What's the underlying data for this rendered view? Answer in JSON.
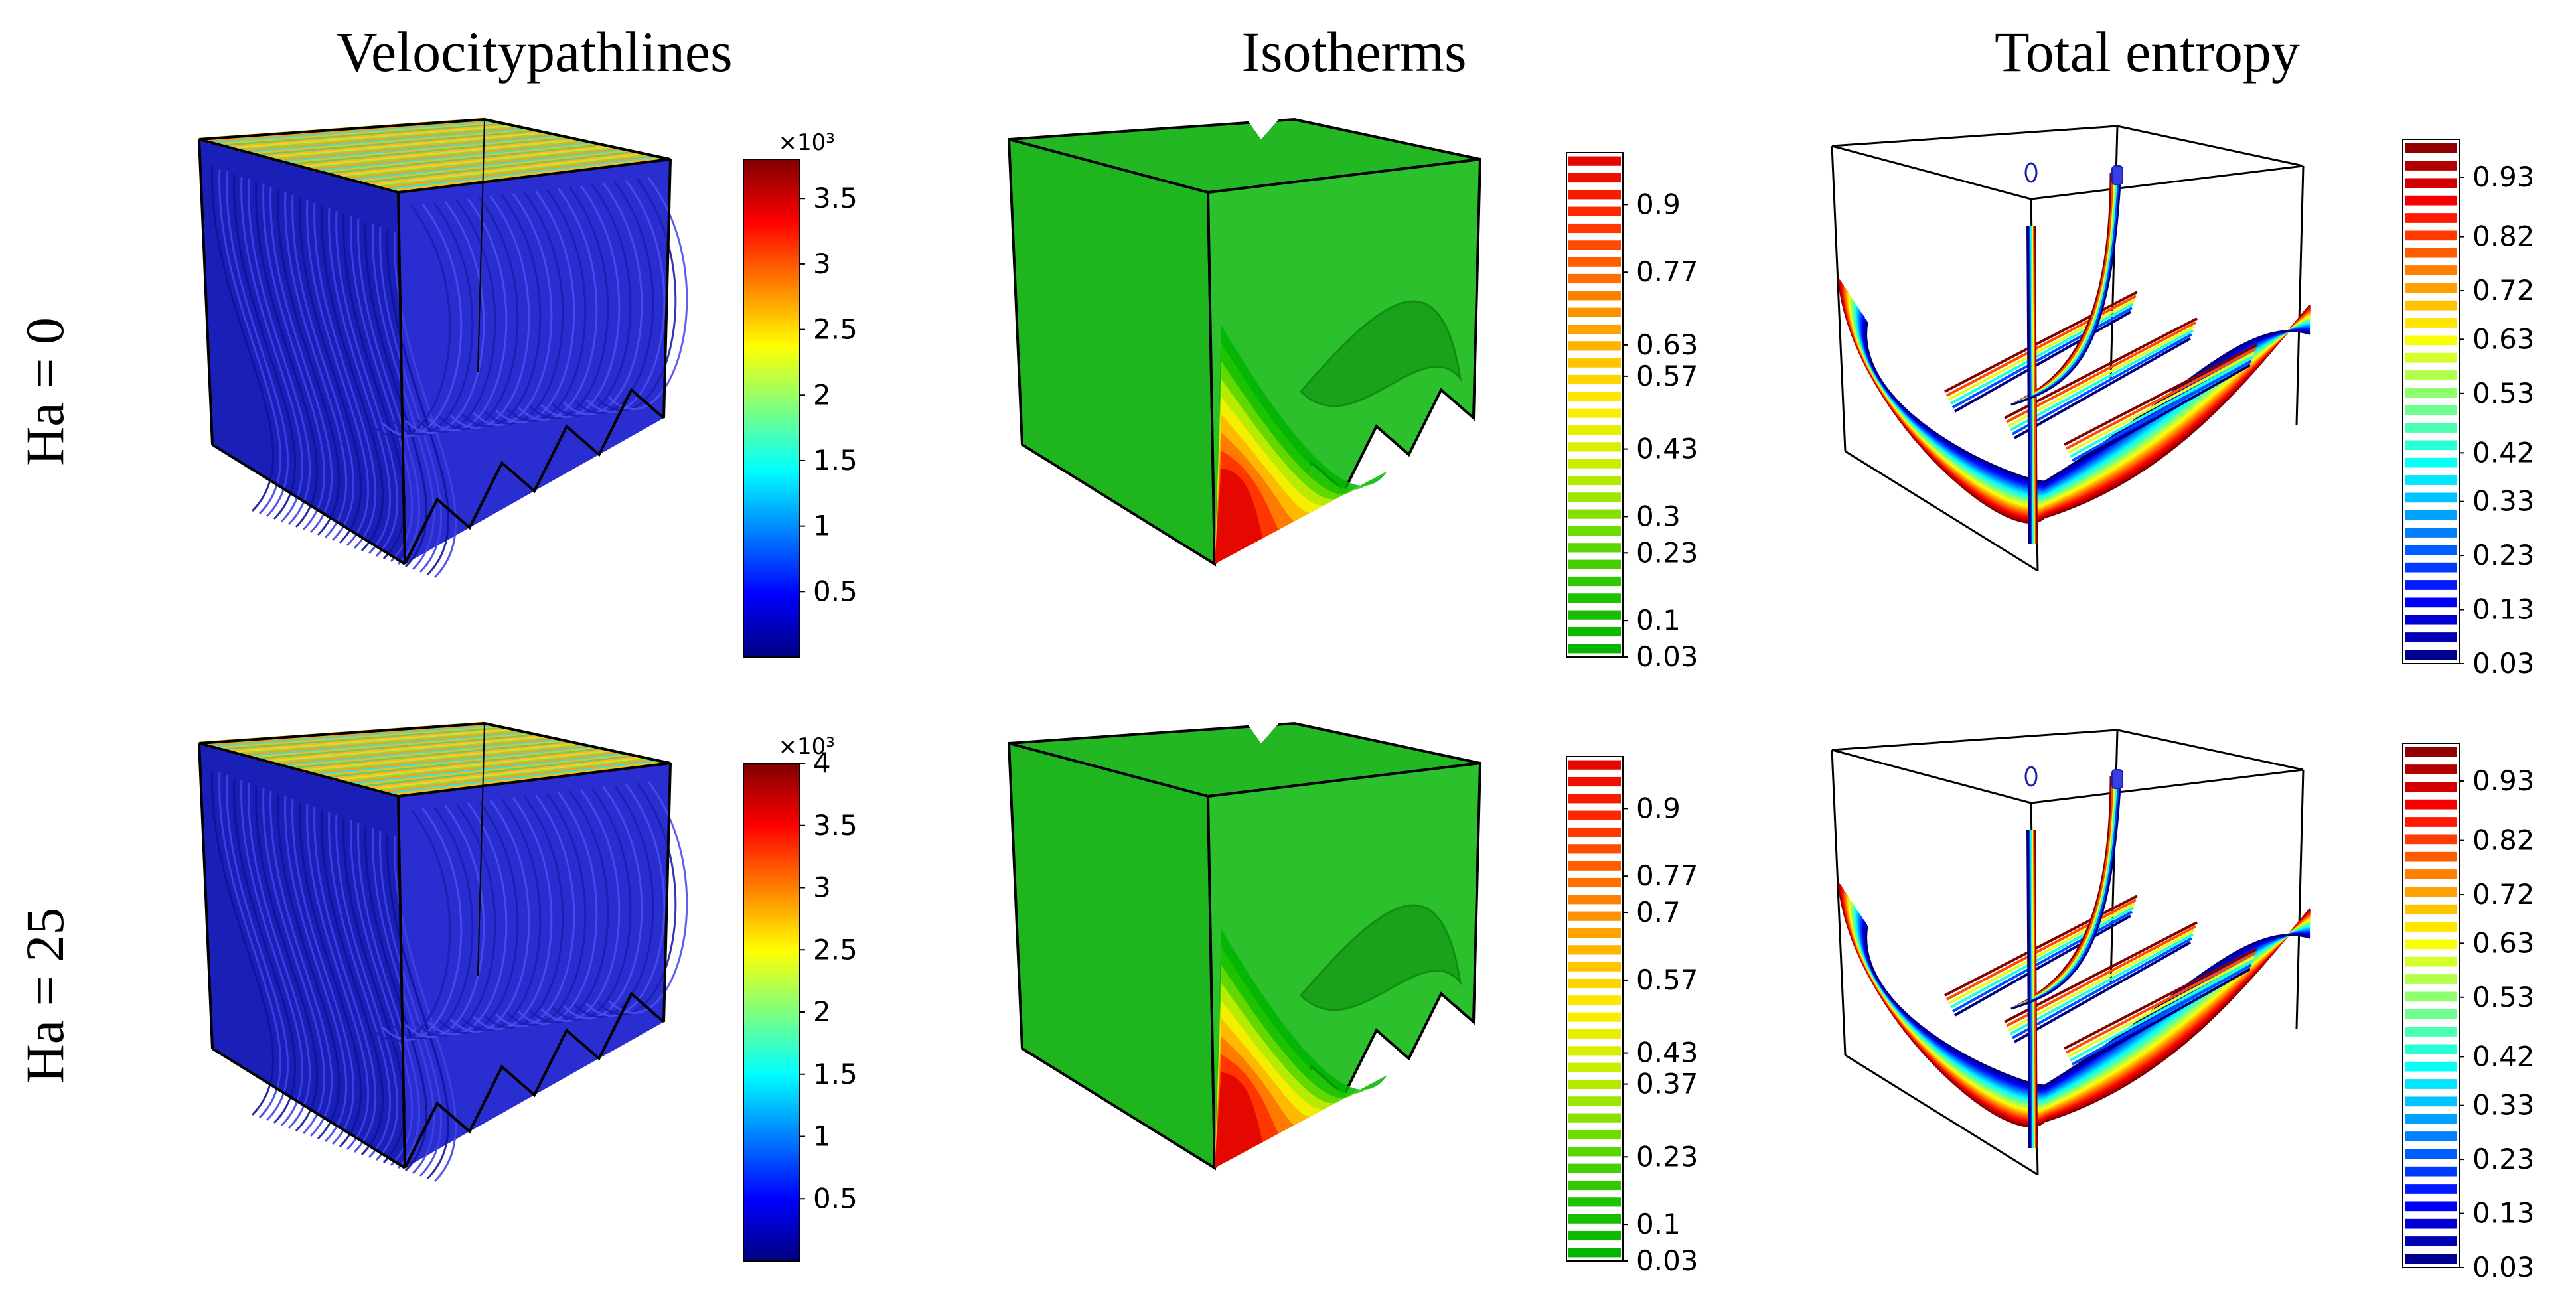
{
  "figure": {
    "columns": [
      {
        "title": "Velocitypathlines"
      },
      {
        "title": "Isotherms"
      },
      {
        "title": "Total entropy"
      }
    ],
    "rows": [
      {
        "label": "Ha = 0"
      },
      {
        "label": "Ha = 25"
      }
    ]
  },
  "panels": {
    "velocity_ha0": {
      "scale_label": "×10³",
      "ticks": [
        "3.5",
        "3",
        "2.5",
        "2",
        "1.5",
        "1",
        "0.5"
      ],
      "tick_values": [
        3.5,
        3,
        2.5,
        2,
        1.5,
        1,
        0.5
      ],
      "range": [
        0,
        3.8
      ]
    },
    "velocity_ha25": {
      "scale_label": "×10³",
      "ticks": [
        "4",
        "3.5",
        "3",
        "2.5",
        "2",
        "1.5",
        "1",
        "0.5"
      ],
      "tick_values": [
        4,
        3.5,
        3,
        2.5,
        2,
        1.5,
        1,
        0.5
      ],
      "range": [
        0,
        4
      ]
    },
    "isotherm_ha0": {
      "ticks": [
        "0.9",
        "0.77",
        "0.63",
        "0.57",
        "0.43",
        "0.3",
        "0.23",
        "0.1",
        "0.03"
      ],
      "tick_values": [
        0.9,
        0.77,
        0.63,
        0.57,
        0.43,
        0.3,
        0.23,
        0.1,
        0.03
      ],
      "range": [
        0.03,
        1
      ]
    },
    "isotherm_ha25": {
      "ticks": [
        "0.9",
        "0.77",
        "0.7",
        "0.57",
        "0.43",
        "0.37",
        "0.23",
        "0.1",
        "0.03"
      ],
      "tick_values": [
        0.9,
        0.77,
        0.7,
        0.57,
        0.43,
        0.37,
        0.23,
        0.1,
        0.03
      ],
      "range": [
        0.03,
        1
      ]
    },
    "entropy_ha0": {
      "ticks": [
        "0.93",
        "0.82",
        "0.72",
        "0.63",
        "0.53",
        "0.42",
        "0.33",
        "0.23",
        "0.13",
        "0.03"
      ],
      "tick_values": [
        0.93,
        0.82,
        0.72,
        0.63,
        0.53,
        0.42,
        0.33,
        0.23,
        0.13,
        0.03
      ],
      "range": [
        0.03,
        1
      ]
    },
    "entropy_ha25": {
      "ticks": [
        "0.93",
        "0.82",
        "0.72",
        "0.63",
        "0.53",
        "0.42",
        "0.33",
        "0.23",
        "0.13",
        "0.03"
      ],
      "tick_values": [
        0.93,
        0.82,
        0.72,
        0.63,
        0.53,
        0.42,
        0.33,
        0.23,
        0.13,
        0.03
      ],
      "range": [
        0.03,
        1
      ]
    }
  },
  "colors": {
    "jet": [
      "#00007f",
      "#0000ff",
      "#007fff",
      "#00ffff",
      "#7fff7f",
      "#ffff00",
      "#ff7f00",
      "#ff0000",
      "#7f0000"
    ],
    "isotherm_green": "#1fb51f",
    "isotherm_ramp": [
      "#00b400",
      "#22c400",
      "#6fdc00",
      "#c7ee00",
      "#ffee00",
      "#ffb000",
      "#ff7000",
      "#ff2a00",
      "#e00000"
    ]
  }
}
